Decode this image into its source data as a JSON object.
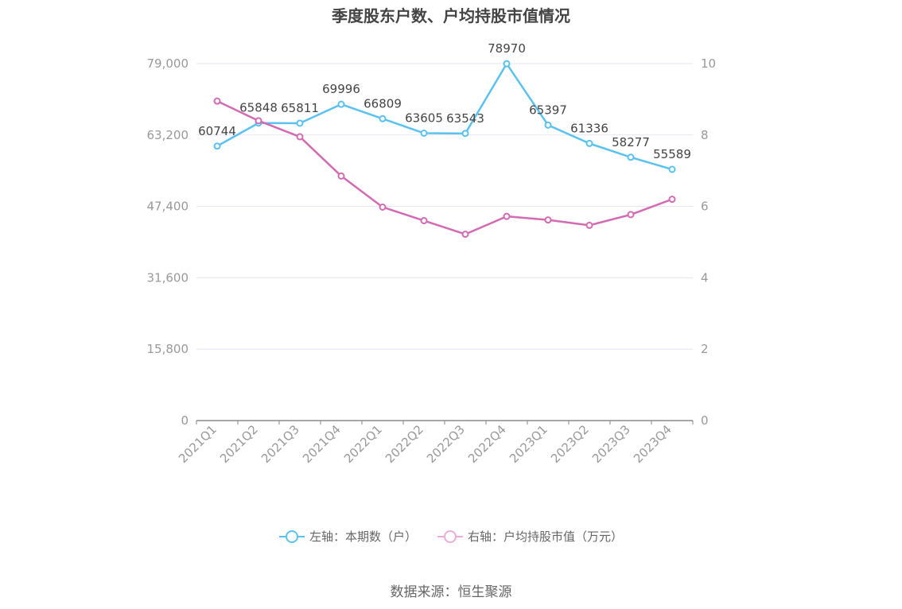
{
  "title": "季度股东户数、户均持股市值情况",
  "source": "数据来源：恒生聚源",
  "colors": {
    "left": "#5bc1ee",
    "right": "#d36bb3",
    "grid": "#e3e6f3",
    "axis": "#8a8a8a",
    "tick_label": "#999999",
    "data_label": "#444444"
  },
  "chart_data": {
    "type": "line",
    "categories": [
      "2021Q1",
      "2021Q2",
      "2021Q3",
      "2021Q4",
      "2022Q1",
      "2022Q2",
      "2022Q3",
      "2022Q4",
      "2023Q1",
      "2023Q2",
      "2023Q3",
      "2023Q4"
    ],
    "left_axis": {
      "ylim": [
        0,
        79000
      ],
      "ticks": [
        "0",
        "15,800",
        "31,600",
        "47,400",
        "63,200",
        "79,000"
      ]
    },
    "right_axis": {
      "ylim": [
        0,
        10
      ],
      "ticks": [
        "0",
        "2",
        "4",
        "6",
        "8",
        "10"
      ]
    },
    "series": [
      {
        "name": "左轴：本期数（户）",
        "axis": "left",
        "values": [
          60744,
          65848,
          65811,
          69996,
          66809,
          63605,
          63543,
          78970,
          65397,
          61336,
          58277,
          55589
        ],
        "labels": [
          "60744",
          "65848",
          "65811",
          "69996",
          "66809",
          "63605",
          "63543",
          "78970",
          "65397",
          "61336",
          "58277",
          "55589"
        ]
      },
      {
        "name": "右轴：户均持股市值（万元）",
        "axis": "right",
        "values": [
          8.95,
          8.4,
          7.95,
          6.85,
          5.98,
          5.6,
          5.22,
          5.72,
          5.62,
          5.47,
          5.77,
          6.2
        ]
      }
    ],
    "grid": true,
    "legend_position": "bottom"
  }
}
